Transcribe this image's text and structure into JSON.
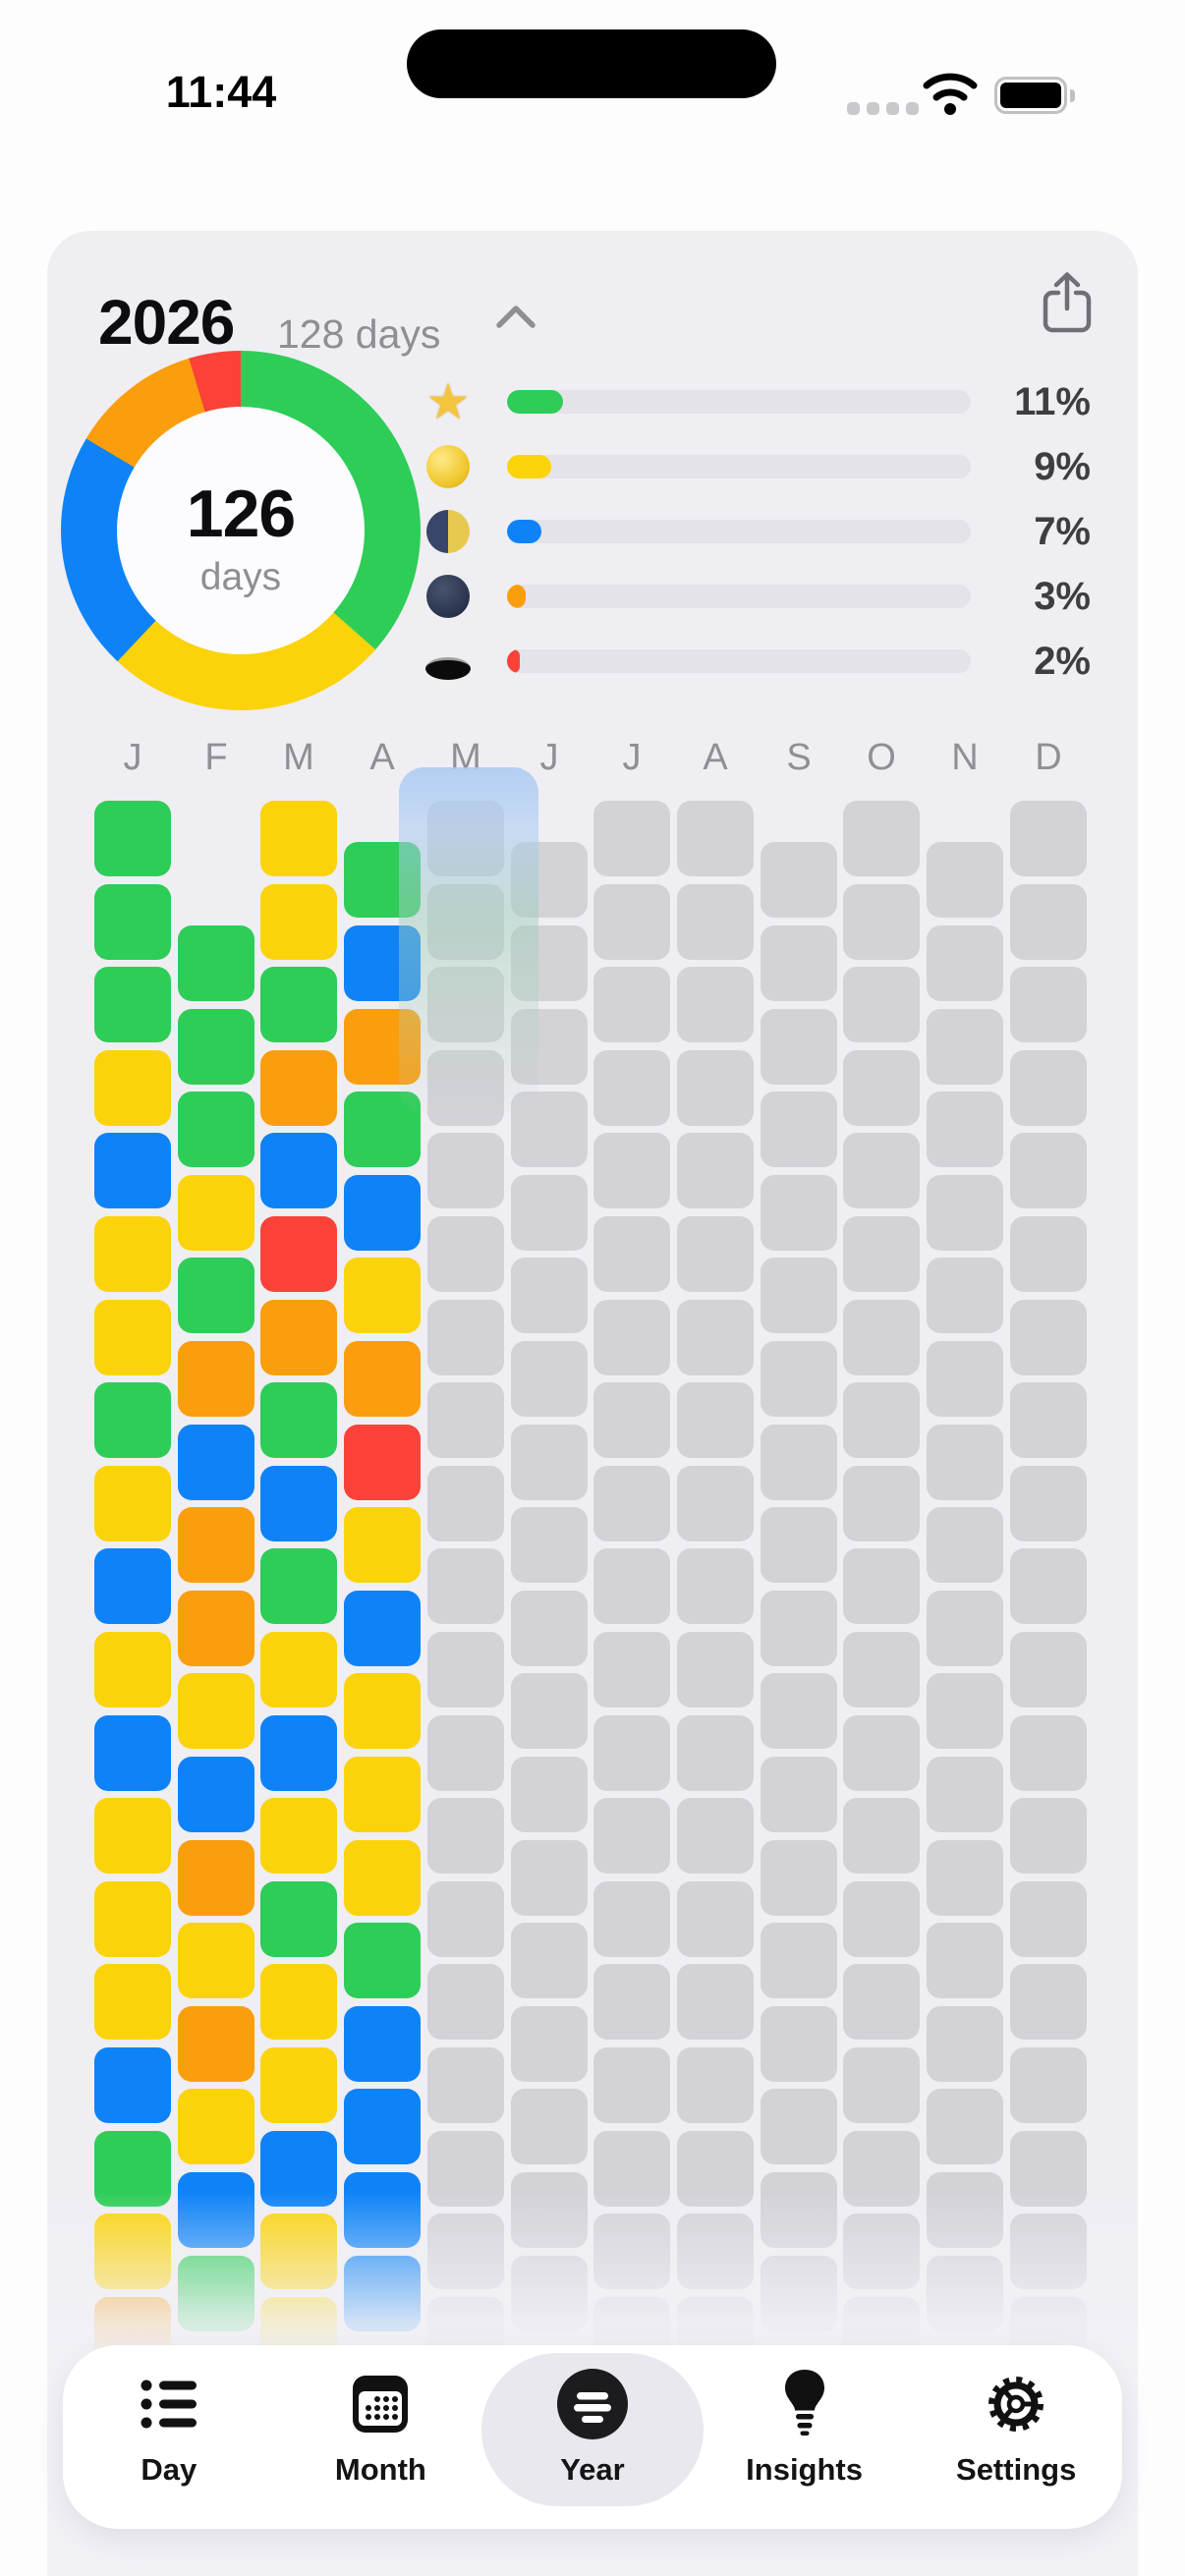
{
  "status_bar": {
    "time": "11:44",
    "icons": [
      "cellular-dots-icon",
      "wifi-icon",
      "battery-full-icon"
    ]
  },
  "header": {
    "title": "2026",
    "subtitle": "128 days",
    "collapse_icon": "chevron-up-icon",
    "share_icon": "share-icon"
  },
  "summary": {
    "donut": {
      "type": "donut",
      "center_value": "126",
      "center_label": "days",
      "segments": [
        {
          "name": "green",
          "color": "#2ECD58",
          "fraction": 0.365
        },
        {
          "name": "yellow",
          "color": "#FBD30B",
          "fraction": 0.255
        },
        {
          "name": "blue",
          "color": "#0D83F7",
          "fraction": 0.215
        },
        {
          "name": "orange",
          "color": "#FA9E0D",
          "fraction": 0.118
        },
        {
          "name": "red",
          "color": "#FA4238",
          "fraction": 0.047
        }
      ]
    },
    "legend_rows": [
      {
        "icon": "star-emoji",
        "color": "#2ECD58",
        "percent": "11%",
        "fill_pct": 12
      },
      {
        "icon": "full-moon-emoji",
        "color": "#FBD30B",
        "percent": "9%",
        "fill_pct": 9.5
      },
      {
        "icon": "last-quarter-moon-emoji",
        "color": "#0D83F7",
        "percent": "7%",
        "fill_pct": 7.5
      },
      {
        "icon": "new-moon-emoji",
        "color": "#FA9E0D",
        "percent": "3%",
        "fill_pct": 4
      },
      {
        "icon": "hole-emoji",
        "color": "#FA4238",
        "percent": "2%",
        "fill_pct": 2.5
      }
    ]
  },
  "calendar": {
    "month_labels": [
      "J",
      "F",
      "M",
      "A",
      "M",
      "J",
      "J",
      "A",
      "S",
      "O",
      "N",
      "D"
    ],
    "color_map": {
      "g": "#2ECD58",
      "y": "#FBD30B",
      "b": "#0D83F7",
      "o": "#FA9E0D",
      "r": "#FA4238",
      "x": "#D2D2D7"
    },
    "columns": [
      {
        "month": "January",
        "offset_rows": 0,
        "days": [
          "g",
          "g",
          "g",
          "y",
          "b",
          "y",
          "y",
          "g",
          "y",
          "b",
          "y",
          "b",
          "y",
          "y",
          "y",
          "b",
          "g",
          "y",
          "o"
        ]
      },
      {
        "month": "February",
        "offset_rows": 1.5,
        "days": [
          "g",
          "g",
          "g",
          "y",
          "g",
          "o",
          "b",
          "o",
          "o",
          "y",
          "b",
          "o",
          "y",
          "o",
          "y",
          "b",
          "g"
        ]
      },
      {
        "month": "March",
        "offset_rows": 0,
        "days": [
          "y",
          "y",
          "g",
          "o",
          "b",
          "r",
          "o",
          "g",
          "b",
          "g",
          "y",
          "b",
          "y",
          "g",
          "y",
          "y",
          "b",
          "y",
          "y"
        ]
      },
      {
        "month": "April",
        "offset_rows": 0.5,
        "days": [
          "g",
          "b",
          "o",
          "g",
          "b",
          "y",
          "o",
          "r",
          "y",
          "b",
          "y",
          "y",
          "y",
          "g",
          "b",
          "b",
          "b",
          "b"
        ]
      },
      {
        "month": "May",
        "offset_rows": 0,
        "days": [
          "x",
          "x",
          "x",
          "x",
          "x",
          "x",
          "x",
          "x",
          "x",
          "x",
          "x",
          "x",
          "x",
          "x",
          "x",
          "x",
          "x",
          "x",
          "x"
        ]
      },
      {
        "month": "June",
        "offset_rows": 0.5,
        "days": [
          "x",
          "x",
          "x",
          "x",
          "x",
          "x",
          "x",
          "x",
          "x",
          "x",
          "x",
          "x",
          "x",
          "x",
          "x",
          "x",
          "x",
          "x"
        ]
      },
      {
        "month": "July",
        "offset_rows": 0,
        "days": [
          "x",
          "x",
          "x",
          "x",
          "x",
          "x",
          "x",
          "x",
          "x",
          "x",
          "x",
          "x",
          "x",
          "x",
          "x",
          "x",
          "x",
          "x",
          "x"
        ]
      },
      {
        "month": "August",
        "offset_rows": 0,
        "days": [
          "x",
          "x",
          "x",
          "x",
          "x",
          "x",
          "x",
          "x",
          "x",
          "x",
          "x",
          "x",
          "x",
          "x",
          "x",
          "x",
          "x",
          "x",
          "x"
        ]
      },
      {
        "month": "September",
        "offset_rows": 0.5,
        "days": [
          "x",
          "x",
          "x",
          "x",
          "x",
          "x",
          "x",
          "x",
          "x",
          "x",
          "x",
          "x",
          "x",
          "x",
          "x",
          "x",
          "x",
          "x"
        ]
      },
      {
        "month": "October",
        "offset_rows": 0,
        "days": [
          "x",
          "x",
          "x",
          "x",
          "x",
          "x",
          "x",
          "x",
          "x",
          "x",
          "x",
          "x",
          "x",
          "x",
          "x",
          "x",
          "x",
          "x",
          "x"
        ]
      },
      {
        "month": "November",
        "offset_rows": 0.5,
        "days": [
          "x",
          "x",
          "x",
          "x",
          "x",
          "x",
          "x",
          "x",
          "x",
          "x",
          "x",
          "x",
          "x",
          "x",
          "x",
          "x",
          "x",
          "x"
        ]
      },
      {
        "month": "December",
        "offset_rows": 0,
        "days": [
          "x",
          "x",
          "x",
          "x",
          "x",
          "x",
          "x",
          "x",
          "x",
          "x",
          "x",
          "x",
          "x",
          "x",
          "x",
          "x",
          "x",
          "x",
          "x"
        ]
      }
    ],
    "overlay": {
      "over_month": "May",
      "style": "translucent-blue-green"
    }
  },
  "tabbar": {
    "tabs": [
      {
        "label": "Day",
        "icon": "day-list-icon",
        "selected": false
      },
      {
        "label": "Month",
        "icon": "month-calendar-icon",
        "selected": false
      },
      {
        "label": "Year",
        "icon": "year-grid-icon",
        "selected": true
      },
      {
        "label": "Insights",
        "icon": "insights-bulb-icon",
        "selected": false
      },
      {
        "label": "Settings",
        "icon": "settings-gear-icon",
        "selected": false
      }
    ]
  }
}
